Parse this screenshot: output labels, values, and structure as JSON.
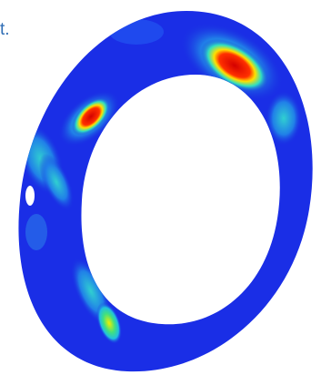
{
  "caption": "t."
}
